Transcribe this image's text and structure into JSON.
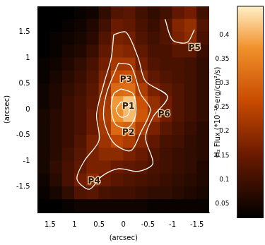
{
  "chart_data": [
    {
      "type": "heatmap",
      "xlabel": "(arcsec)",
      "ylabel": "(arcsec)",
      "xlim": [
        1.75,
        -1.75
      ],
      "ylim": [
        -2,
        2
      ],
      "xticks": [
        1.5,
        1,
        0.5,
        0,
        -0.5,
        -1,
        -1.5
      ],
      "yticks": [
        -1.5,
        -1,
        -0.5,
        0,
        0.5,
        1,
        1.5
      ],
      "grid": false,
      "x": [
        1.625,
        1.375,
        1.125,
        0.875,
        0.625,
        0.375,
        0.125,
        -0.125,
        -0.375,
        -0.625,
        -0.875,
        -1.125,
        -1.375,
        -1.625
      ],
      "y": [
        1.875,
        1.625,
        1.375,
        1.125,
        0.875,
        0.625,
        0.375,
        0.125,
        -0.125,
        -0.375,
        -0.625,
        -0.875,
        -1.125,
        -1.375,
        -1.625,
        -1.875
      ],
      "cells": [
        [
          0.02,
          0.02,
          0.02,
          0.03,
          0.04,
          0.08,
          0.12,
          0.13,
          0.1,
          0.08,
          0.1,
          0.14,
          0.16,
          0.1
        ],
        [
          0.02,
          0.02,
          0.03,
          0.04,
          0.06,
          0.1,
          0.15,
          0.14,
          0.11,
          0.09,
          0.12,
          0.18,
          0.2,
          0.12
        ],
        [
          0.02,
          0.03,
          0.04,
          0.05,
          0.07,
          0.12,
          0.17,
          0.16,
          0.12,
          0.1,
          0.12,
          0.17,
          0.19,
          0.11
        ],
        [
          0.02,
          0.03,
          0.05,
          0.06,
          0.09,
          0.14,
          0.19,
          0.18,
          0.14,
          0.11,
          0.11,
          0.13,
          0.13,
          0.09
        ],
        [
          0.03,
          0.04,
          0.06,
          0.08,
          0.11,
          0.16,
          0.22,
          0.22,
          0.16,
          0.12,
          0.11,
          0.11,
          0.1,
          0.08
        ],
        [
          0.03,
          0.05,
          0.07,
          0.09,
          0.12,
          0.18,
          0.26,
          0.27,
          0.19,
          0.14,
          0.12,
          0.11,
          0.1,
          0.08
        ],
        [
          0.04,
          0.06,
          0.08,
          0.1,
          0.13,
          0.2,
          0.31,
          0.32,
          0.23,
          0.17,
          0.14,
          0.12,
          0.1,
          0.08
        ],
        [
          0.04,
          0.06,
          0.09,
          0.11,
          0.14,
          0.22,
          0.38,
          0.42,
          0.27,
          0.2,
          0.16,
          0.12,
          0.1,
          0.08
        ],
        [
          0.05,
          0.07,
          0.09,
          0.11,
          0.15,
          0.23,
          0.37,
          0.41,
          0.28,
          0.21,
          0.16,
          0.12,
          0.1,
          0.08
        ],
        [
          0.05,
          0.07,
          0.09,
          0.11,
          0.15,
          0.22,
          0.31,
          0.3,
          0.23,
          0.17,
          0.13,
          0.11,
          0.09,
          0.07
        ],
        [
          0.05,
          0.07,
          0.09,
          0.12,
          0.17,
          0.21,
          0.25,
          0.23,
          0.18,
          0.14,
          0.11,
          0.1,
          0.08,
          0.07
        ],
        [
          0.05,
          0.07,
          0.1,
          0.13,
          0.17,
          0.19,
          0.19,
          0.17,
          0.15,
          0.12,
          0.1,
          0.09,
          0.08,
          0.07
        ],
        [
          0.05,
          0.08,
          0.11,
          0.14,
          0.17,
          0.17,
          0.15,
          0.14,
          0.13,
          0.11,
          0.1,
          0.09,
          0.08,
          0.06
        ],
        [
          0.04,
          0.07,
          0.11,
          0.16,
          0.19,
          0.15,
          0.13,
          0.12,
          0.11,
          0.1,
          0.09,
          0.08,
          0.07,
          0.06
        ],
        [
          0.03,
          0.05,
          0.08,
          0.12,
          0.13,
          0.11,
          0.1,
          0.1,
          0.09,
          0.08,
          0.08,
          0.07,
          0.06,
          0.05
        ],
        [
          0.02,
          0.02,
          0.03,
          0.04,
          0.04,
          0.04,
          0.04,
          0.04,
          0.04,
          0.03,
          0.03,
          0.03,
          0.03,
          0.03
        ]
      ],
      "contours": [
        [
          [
            0.2,
            1.45
          ],
          [
            -0.05,
            1.5
          ],
          [
            -0.3,
            1.0
          ],
          [
            -0.45,
            0.55
          ],
          [
            -0.9,
            0.25
          ],
          [
            -0.6,
            -0.15
          ],
          [
            -0.45,
            -0.55
          ],
          [
            -0.6,
            -1.05
          ],
          [
            -0.3,
            -1.2
          ],
          [
            0.1,
            -1.15
          ],
          [
            0.45,
            -1.3
          ],
          [
            0.7,
            -1.55
          ],
          [
            0.95,
            -1.35
          ],
          [
            0.8,
            -1.0
          ],
          [
            0.5,
            -0.6
          ],
          [
            0.55,
            -0.1
          ],
          [
            0.4,
            0.5
          ],
          [
            0.25,
            1.0
          ],
          [
            0.2,
            1.45
          ]
        ],
        [
          [
            0.1,
            0.9
          ],
          [
            -0.15,
            0.85
          ],
          [
            -0.35,
            0.3
          ],
          [
            -0.55,
            0.0
          ],
          [
            -0.35,
            -0.45
          ],
          [
            -0.15,
            -0.8
          ],
          [
            0.2,
            -0.65
          ],
          [
            0.4,
            -0.2
          ],
          [
            0.35,
            0.3
          ],
          [
            0.1,
            0.9
          ]
        ],
        [
          [
            0.05,
            0.4
          ],
          [
            -0.2,
            0.3
          ],
          [
            -0.25,
            -0.1
          ],
          [
            -0.1,
            -0.35
          ],
          [
            0.15,
            -0.3
          ],
          [
            0.25,
            0.0
          ],
          [
            0.2,
            0.3
          ],
          [
            0.05,
            0.4
          ]
        ],
        [
          [
            0.05,
            0.15
          ],
          [
            -0.1,
            0.1
          ],
          [
            -0.1,
            -0.1
          ],
          [
            0.05,
            -0.15
          ],
          [
            0.15,
            0.0
          ],
          [
            0.05,
            0.15
          ]
        ],
        [
          [
            -0.85,
            1.75
          ],
          [
            -1.0,
            1.35
          ],
          [
            -1.3,
            1.3
          ],
          [
            -1.45,
            1.55
          ]
        ]
      ],
      "annotations": [
        {
          "text": "P1",
          "x": -0.1,
          "y": 0.05
        },
        {
          "text": "P2",
          "x": -0.1,
          "y": -0.45
        },
        {
          "text": "P3",
          "x": -0.05,
          "y": 0.58
        },
        {
          "text": "P4",
          "x": 0.6,
          "y": -1.4
        },
        {
          "text": "P5",
          "x": -1.45,
          "y": 1.2
        },
        {
          "text": "P6",
          "x": -0.83,
          "y": -0.1
        }
      ],
      "colorbar": {
        "label": "H₂ Flux (*10⁻¹⁶ erg/cm²/s)",
        "range": [
          0.02,
          0.46
        ],
        "ticks": [
          0.05,
          0.1,
          0.15,
          0.2,
          0.25,
          0.3,
          0.35,
          0.4
        ]
      }
    }
  ]
}
